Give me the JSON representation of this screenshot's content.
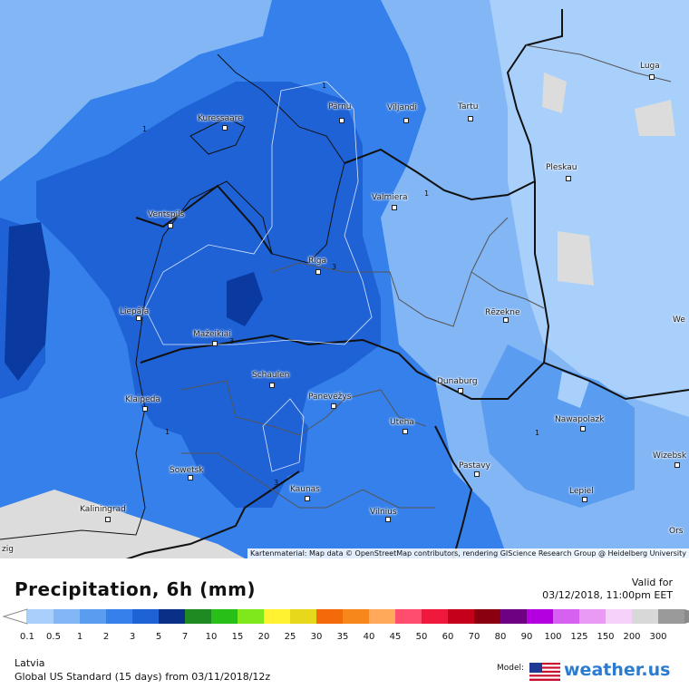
{
  "title": "Precipitation, 6h (mm)",
  "valid_for_label": "Valid for",
  "valid_for": "03/12/2018, 11:00pm EET",
  "region": "Latvia",
  "model_run": "Global US Standard (15 days) from 03/11/2018/12z",
  "model_label": "Model:",
  "brand": "weather.us",
  "attribution": "Kartenmaterial: Map data © OpenStreetMap contributors, rendering GIScience Research Group @ Heidelberg University",
  "legend": {
    "labels": [
      "0.1",
      "0.5",
      "1",
      "2",
      "3",
      "5",
      "7",
      "10",
      "15",
      "20",
      "25",
      "30",
      "35",
      "40",
      "45",
      "50",
      "60",
      "70",
      "80",
      "90",
      "100",
      "125",
      "150",
      "200",
      "300"
    ],
    "colors": [
      "#a9d0fb",
      "#82b6f5",
      "#5a9cf0",
      "#3580ea",
      "#1f62d6",
      "#0a2f86",
      "#1f8a22",
      "#27bf18",
      "#7ee81d",
      "#fff230",
      "#e8d81c",
      "#f26a0a",
      "#f7871b",
      "#ffaa5a",
      "#ff4d6d",
      "#f0183c",
      "#c4001a",
      "#8a0011",
      "#6e0082",
      "#b400e0",
      "#d660f0",
      "#e99af5",
      "#f6d2fb",
      "#d8d8d8",
      "#9a9a9a"
    ]
  },
  "cities": [
    {
      "name": "Kuressaare"
    },
    {
      "name": "Pärnu"
    },
    {
      "name": "Viljandi"
    },
    {
      "name": "Tartu"
    },
    {
      "name": "Luga"
    },
    {
      "name": "Pleskau"
    },
    {
      "name": "Valmiera"
    },
    {
      "name": "Ventspils"
    },
    {
      "name": "Riga"
    },
    {
      "name": "Liepāja"
    },
    {
      "name": "Rēzekne"
    },
    {
      "name": "Mažeikiai"
    },
    {
      "name": "Schaulen"
    },
    {
      "name": "Klaipeda"
    },
    {
      "name": "Panevėžys"
    },
    {
      "name": "Dunaburg"
    },
    {
      "name": "Utena"
    },
    {
      "name": "Nawapolazk"
    },
    {
      "name": "Sowetsk"
    },
    {
      "name": "Pastavy"
    },
    {
      "name": "Kaunas"
    },
    {
      "name": "Lepiel"
    },
    {
      "name": "Kaliningrad"
    },
    {
      "name": "Vilnius"
    },
    {
      "name": "Wizebsk"
    },
    {
      "name": "We"
    },
    {
      "name": "Ors"
    },
    {
      "name": "zig"
    }
  ],
  "contour_labels": [
    "1",
    "3",
    "1",
    "1",
    "3",
    "3",
    "1",
    "1",
    "3",
    "1"
  ]
}
